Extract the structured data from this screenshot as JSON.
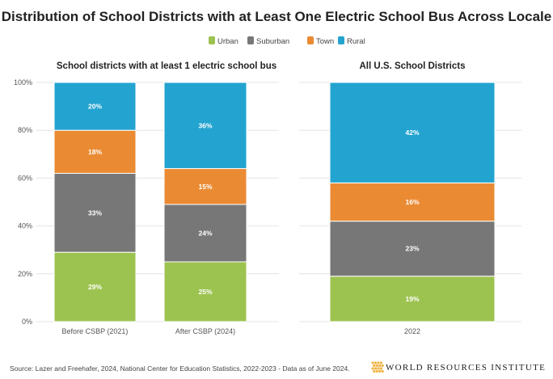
{
  "chart_data": [
    {
      "type": "bar",
      "stacked": true,
      "percent": true,
      "title": "School districts with at least 1 electric school bus",
      "categories": [
        "Before CSBP (2021)",
        "After CSBP (2024)"
      ],
      "series": [
        {
          "name": "Urban",
          "values": [
            29,
            25
          ]
        },
        {
          "name": "Suburban",
          "values": [
            33,
            24
          ]
        },
        {
          "name": "Town",
          "values": [
            18,
            15
          ]
        },
        {
          "name": "Rural",
          "values": [
            20,
            36
          ]
        }
      ],
      "ylim": [
        0,
        100
      ],
      "yticks": [
        "0%",
        "20%",
        "40%",
        "60%",
        "80%",
        "100%"
      ],
      "grid": true
    },
    {
      "type": "bar",
      "stacked": true,
      "percent": true,
      "title": "All U.S. School Districts",
      "categories": [
        "2022"
      ],
      "series": [
        {
          "name": "Urban",
          "values": [
            19
          ]
        },
        {
          "name": "Suburban",
          "values": [
            23
          ]
        },
        {
          "name": "Town",
          "values": [
            16
          ]
        },
        {
          "name": "Rural",
          "values": [
            42
          ]
        }
      ],
      "ylim": [
        0,
        100
      ],
      "grid": true
    }
  ],
  "title": "Distribution of School Districts with at Least One Electric School Bus Across Locale",
  "legend": {
    "placement": "top-center",
    "items": [
      "Urban",
      "Suburban",
      "Town",
      "Rural"
    ]
  },
  "colors": {
    "Urban": "#9cc350",
    "Suburban": "#777777",
    "Town": "#ea8b34",
    "Rural": "#23a4d0"
  },
  "footer": {
    "prefix": "Source: ",
    "link1": "Lazer and Freehafer, 2024",
    "sep": ", ",
    "link2": "National Center for Education Statistics, 2022-2023",
    "suffix": " - Data as of June 2024.",
    "logo_text": "WORLD RESOURCES INSTITUTE"
  }
}
